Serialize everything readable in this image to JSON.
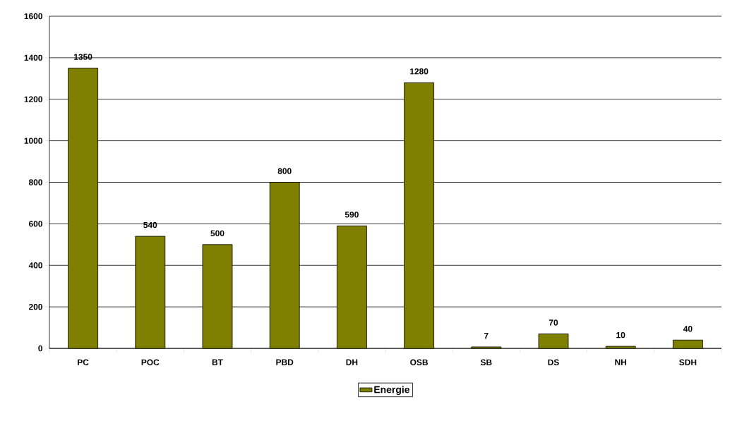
{
  "chart_data": {
    "type": "bar",
    "categories": [
      "PC",
      "POC",
      "BT",
      "PBD",
      "DH",
      "OSB",
      "SB",
      "DS",
      "NH",
      "SDH"
    ],
    "series": [
      {
        "name": "Energie",
        "color": "#808000",
        "values": [
          1350,
          540,
          500,
          800,
          590,
          1280,
          7,
          70,
          10,
          40
        ]
      }
    ],
    "ylim": [
      0,
      1600
    ],
    "yticks": [
      0,
      200,
      400,
      600,
      800,
      1000,
      1200,
      1400,
      1600
    ],
    "grid": "y",
    "legend": "bottom",
    "data_labels": true
  }
}
